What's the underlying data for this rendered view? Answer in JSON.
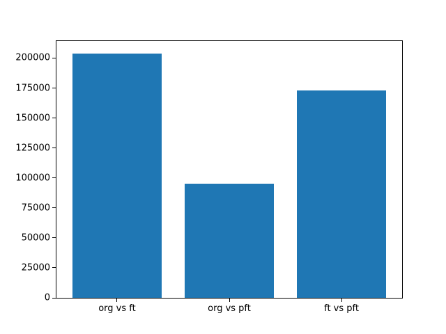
{
  "figure": {
    "background": "#ffffff",
    "axes_border_color": "#000000",
    "tick_color": "#000000",
    "tick_label_color": "#000000"
  },
  "chart_data": {
    "type": "bar",
    "categories": [
      "org vs ft",
      "org vs pft",
      "ft vs pft"
    ],
    "values": [
      204000,
      95000,
      173000
    ],
    "title": "",
    "xlabel": "",
    "ylabel": "",
    "ylim": [
      0,
      214200
    ],
    "yticks": [
      0,
      25000,
      50000,
      75000,
      100000,
      125000,
      150000,
      175000,
      200000
    ],
    "ytick_labels": [
      "0",
      "25000",
      "50000",
      "75000",
      "100000",
      "125000",
      "150000",
      "175000",
      "200000"
    ],
    "bar_color": "#1f77b4",
    "bar_width_fraction": 0.8,
    "x_margin_fraction": 0.05,
    "grid": false,
    "legend": false
  }
}
